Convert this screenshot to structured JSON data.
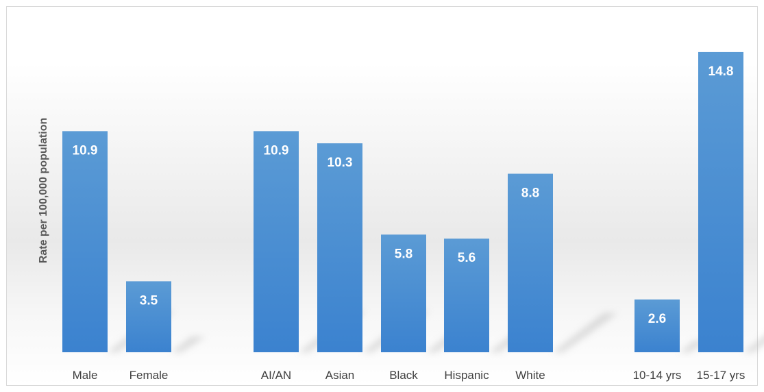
{
  "chart_data": {
    "type": "bar",
    "ylabel": "Rate per 100,000 population",
    "categories": [
      "Male",
      "Female",
      "AI/AN",
      "Asian",
      "Black",
      "Hispanic",
      "White",
      "10-14 yrs",
      "15-17 yrs"
    ],
    "values": [
      10.9,
      3.5,
      10.9,
      10.3,
      5.8,
      5.6,
      8.8,
      2.6,
      14.8
    ],
    "data_labels": [
      "10.9",
      "3.5",
      "10.9",
      "10.3",
      "5.8",
      "5.6",
      "8.8",
      "2.6",
      "14.8"
    ],
    "groups": [
      {
        "categories": [
          "Male",
          "Female"
        ]
      },
      {
        "categories": [
          "AI/AN",
          "Asian",
          "Black",
          "Hispanic",
          "White"
        ]
      },
      {
        "categories": [
          "10-14 yrs",
          "15-17 yrs"
        ]
      }
    ],
    "ylim": [
      0,
      16
    ],
    "grid": false,
    "legend": "none",
    "bar_color": "#3f88d4",
    "bar_color_light": "#5b9bd5"
  }
}
